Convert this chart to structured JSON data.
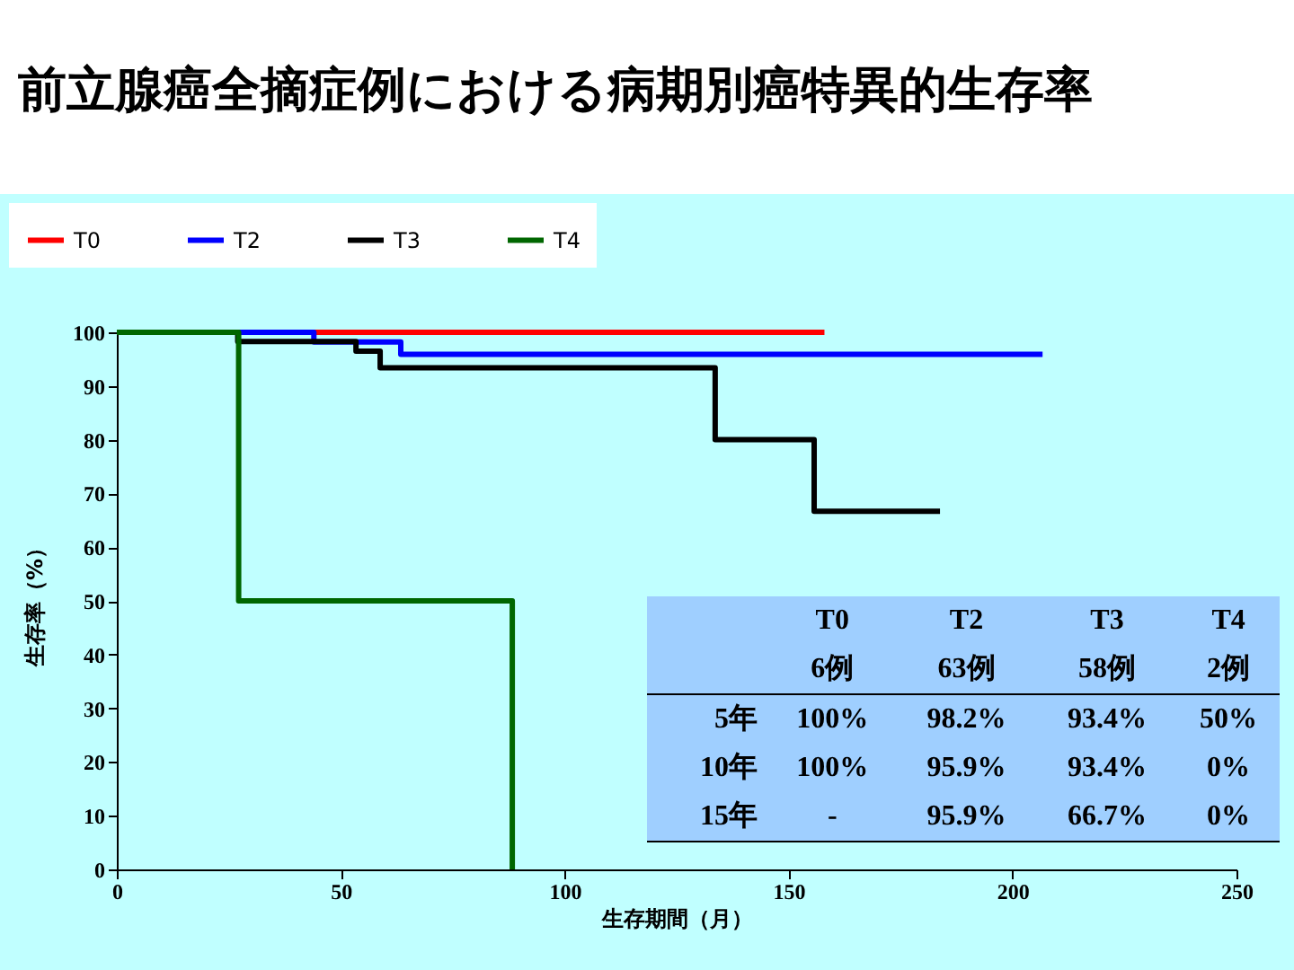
{
  "chart_data": {
    "type": "step",
    "title": "前立腺癌全摘症例における病期別癌特異的生存率",
    "xlabel": "生存期間（月）",
    "ylabel": "生存率（%）",
    "xlim": [
      0,
      250
    ],
    "xticks": [
      0,
      50,
      100,
      150,
      200,
      250
    ],
    "ylim": [
      0,
      100
    ],
    "yticks": [
      0,
      10,
      20,
      30,
      40,
      50,
      60,
      70,
      80,
      90,
      100
    ],
    "grid": false,
    "legend": "top left",
    "line_style": "solid",
    "series": [
      {
        "name": "T0",
        "color": "#ff0000",
        "x": [
          0,
          158
        ],
        "values": [
          100,
          100
        ]
      },
      {
        "name": "T2",
        "color": "#0000ff",
        "x": [
          0,
          44,
          63.4,
          206.7
        ],
        "values": [
          100,
          98.2,
          95.9,
          95.9
        ]
      },
      {
        "name": "T3",
        "color": "#000000",
        "x": [
          0,
          27,
          53.4,
          58.8,
          133.6,
          155.7,
          183.8
        ],
        "values": [
          100,
          98.3,
          96.5,
          93.4,
          80,
          66.7,
          66.7
        ]
      },
      {
        "name": "T4",
        "color": "#006600",
        "x": [
          0,
          27.2,
          88.3,
          88.3
        ],
        "values": [
          100,
          50,
          0,
          0
        ]
      }
    ],
    "annotations": [
      "T0",
      "T2",
      "T3",
      "T4",
      "6例",
      "63例",
      "58例",
      "2例",
      "5年",
      "100%",
      "98.2%",
      "93.4%",
      "50%",
      "10年",
      "100%",
      "95.9%",
      "93.4%",
      "0%",
      "15年",
      "-",
      "95.9%",
      "66.7%",
      "0%"
    ]
  }
}
